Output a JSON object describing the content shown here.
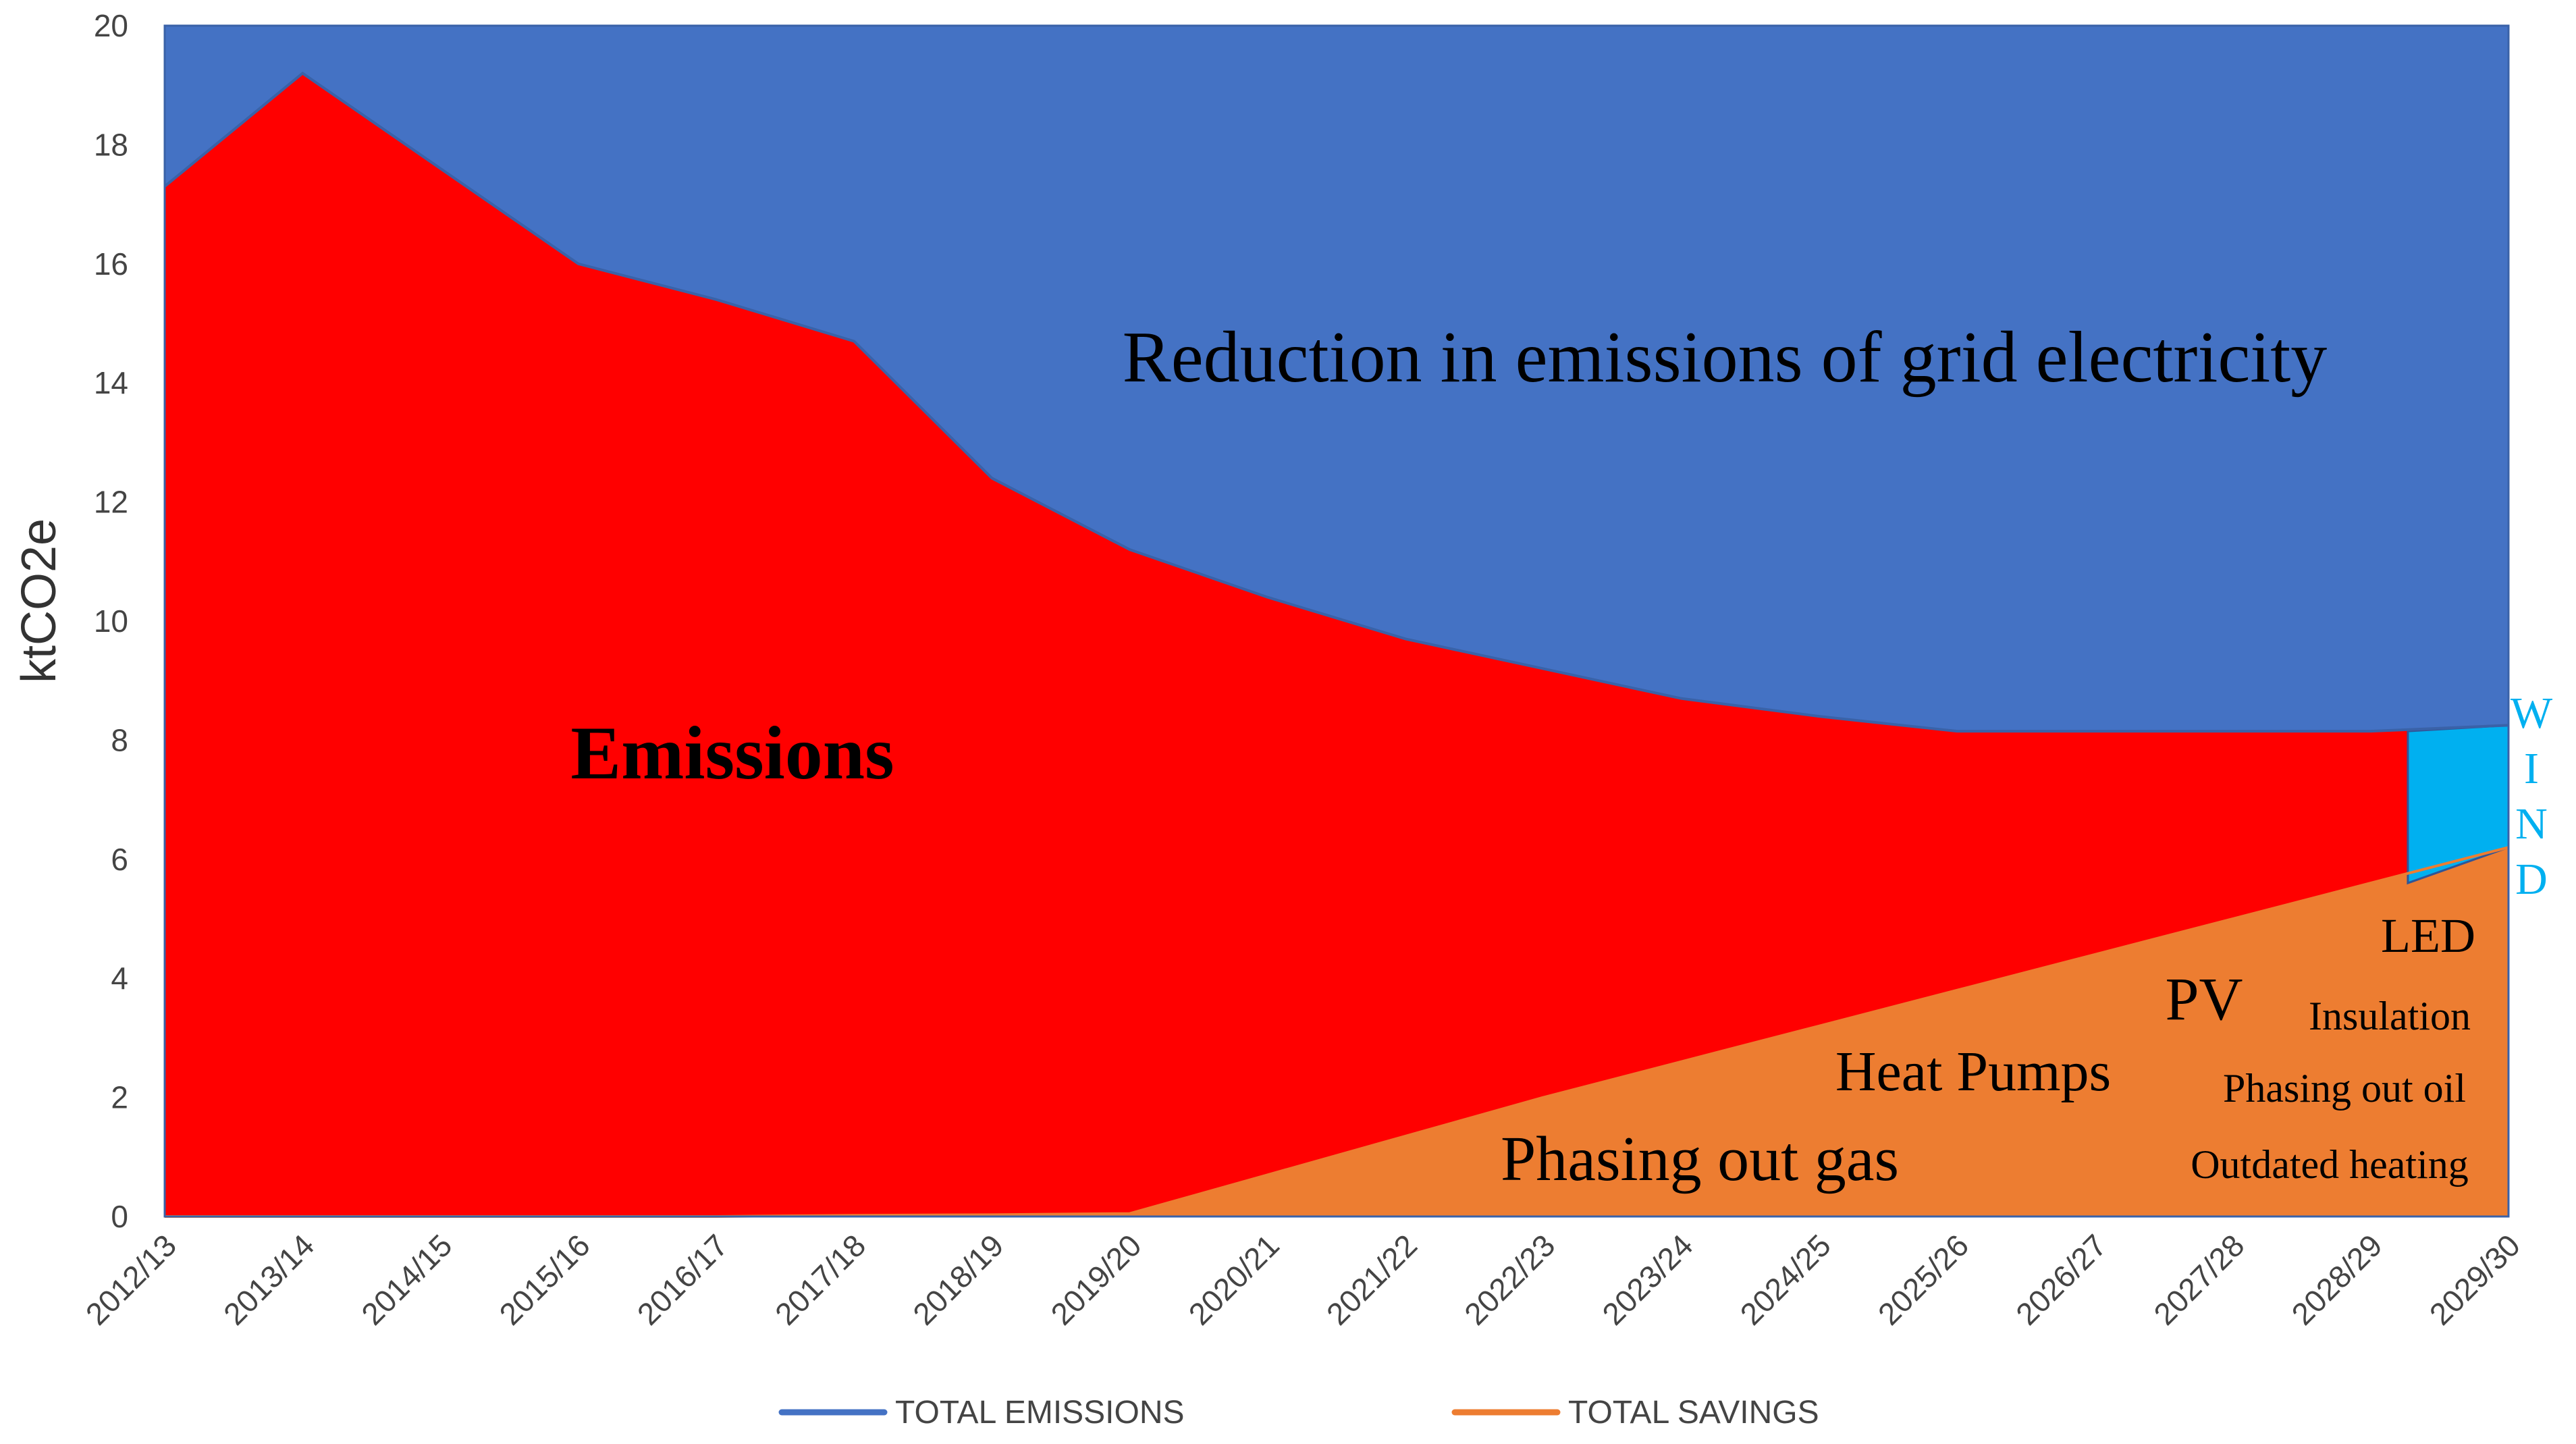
{
  "chart_data": {
    "type": "area",
    "xlabel": "",
    "ylabel": "ktCO2e",
    "ylim": [
      0,
      20
    ],
    "y_ticks": [
      "0",
      "2",
      "4",
      "6",
      "8",
      "10",
      "12",
      "14",
      "16",
      "18",
      "20"
    ],
    "categories": [
      "2012/13",
      "2013/14",
      "2014/15",
      "2015/16",
      "2016/17",
      "2017/18",
      "2018/19",
      "2019/20",
      "2020/21",
      "2021/22",
      "2022/23",
      "2023/24",
      "2024/25",
      "2025/26",
      "2026/27",
      "2027/28",
      "2028/29",
      "2029/30"
    ],
    "series": [
      {
        "name": "TOTAL EMISSIONS",
        "color": "#4472C4",
        "values": [
          17.3,
          19.2,
          17.6,
          16.0,
          15.4,
          14.7,
          12.4,
          11.2,
          10.4,
          9.7,
          9.2,
          8.7,
          8.4,
          8.15,
          8.15,
          8.15,
          8.15,
          8.25
        ]
      },
      {
        "name": "TOTAL SAVINGS",
        "color": "#ED7D31",
        "values": [
          0,
          0,
          0,
          0,
          0,
          0.02,
          0.03,
          0.05,
          0.7,
          1.35,
          2.0,
          2.6,
          3.2,
          3.8,
          4.4,
          5.0,
          5.6,
          6.2
        ]
      }
    ],
    "grid_reduction_top": 20,
    "wind_wedge": {
      "label_letters": [
        "W",
        "I",
        "N",
        "D"
      ],
      "color": "#00B0F0",
      "top_values": [
        8.15,
        8.25
      ],
      "bottom_values": [
        5.6,
        6.2
      ]
    },
    "annotations": {
      "reduction": "Reduction in emissions of grid electricity",
      "emissions": "Emissions",
      "led": "LED",
      "pv": "PV",
      "insulation": "Insulation",
      "heat_pumps": "Heat Pumps",
      "phasing_out_oil": "Phasing out oil",
      "phasing_out_gas": "Phasing out gas",
      "outdated_heating": "Outdated heating"
    },
    "legend_position": "bottom",
    "colors": {
      "reduction": "#4472C4",
      "emissions": "#FF0000",
      "savings": "#ED7D31",
      "wind": "#00B0F0",
      "emissions_line": "#4472C4",
      "savings_line": "#ED7D31"
    }
  }
}
